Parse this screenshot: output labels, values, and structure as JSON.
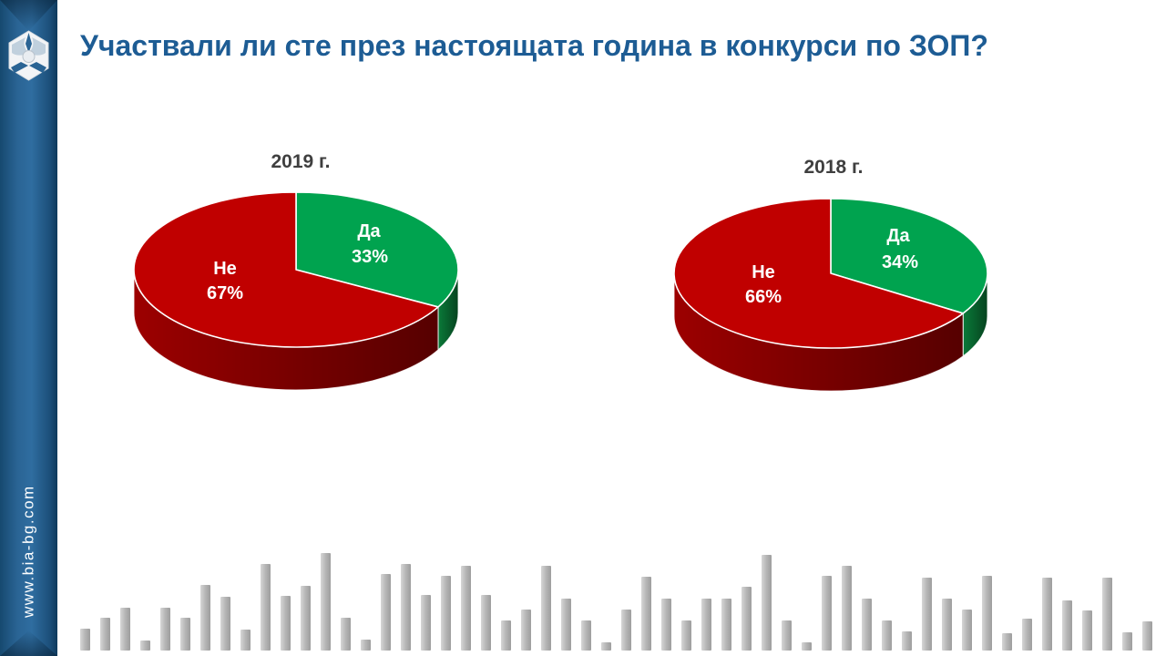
{
  "slide": {
    "title": "Участвали ли сте през настоящата година в конкурси по ЗОП?",
    "title_color": "#1d5c94",
    "background_color": "#ffffff"
  },
  "sidebar": {
    "website": "www.bia-bg.com",
    "color": "#2a6494",
    "logo": "bia-hexagon-logo"
  },
  "chart_data": [
    {
      "type": "pie",
      "title": "2019 г.",
      "labels": [
        "Да",
        "Не"
      ],
      "values": [
        33,
        67
      ],
      "pct_labels": [
        "33%",
        "67%"
      ],
      "colors": [
        "#00a34f",
        "#c00000"
      ],
      "wall_colors": [
        "#0a7a39",
        "#9c0000"
      ],
      "label_color": "#ffffff",
      "title_color": "#3f3f3f",
      "start_angle_deg": 0,
      "direction": "clockwise",
      "style": "3d",
      "legend": "none"
    },
    {
      "type": "pie",
      "title": "2018 г.",
      "labels": [
        "Да",
        "Не"
      ],
      "values": [
        34,
        66
      ],
      "pct_labels": [
        "34%",
        "66%"
      ],
      "colors": [
        "#00a34f",
        "#c00000"
      ],
      "wall_colors": [
        "#0a7a39",
        "#9c0000"
      ],
      "label_color": "#ffffff",
      "title_color": "#3f3f3f",
      "start_angle_deg": 0,
      "direction": "clockwise",
      "style": "3d",
      "legend": "none"
    }
  ],
  "decorative_bars": {
    "color": "#b5b5b5",
    "heights": [
      24,
      36,
      47,
      11,
      47,
      36,
      72,
      59,
      23,
      95,
      60,
      71,
      107,
      36,
      12,
      84,
      95,
      61,
      82,
      93,
      61,
      33,
      45,
      93,
      57,
      33,
      9,
      45,
      81,
      57,
      33,
      57,
      57,
      70,
      105,
      33,
      9,
      82,
      93,
      57,
      33,
      21,
      80,
      57,
      45,
      82,
      19,
      35,
      80,
      55,
      44,
      80,
      20,
      32
    ]
  }
}
